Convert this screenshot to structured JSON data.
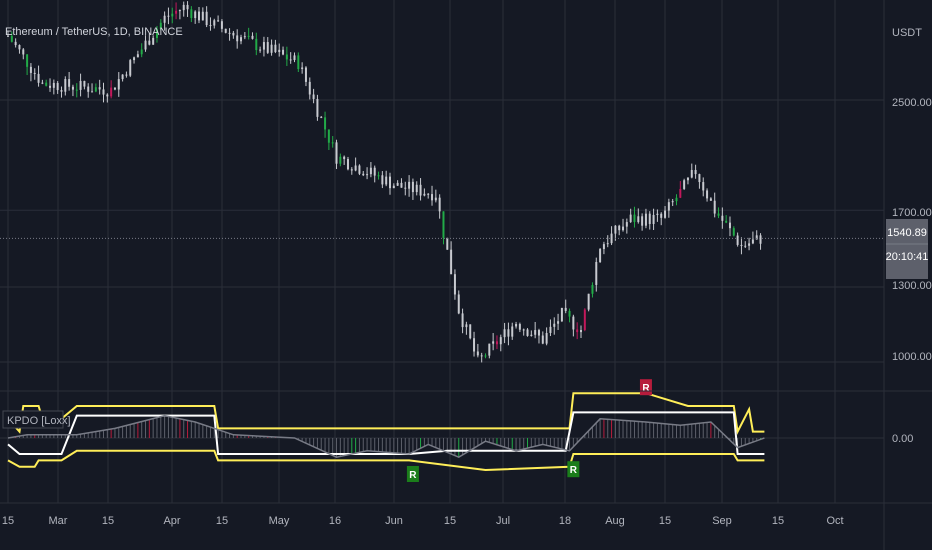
{
  "header": {
    "symbol_title": "Ethereum / TetherUS, 1D, BINANCE",
    "currency": "USDT"
  },
  "indicator": {
    "name": "KPDO [Loxx]",
    "zero_label": "0.00",
    "signal_letter": "R"
  },
  "price_badge": {
    "price": "1540.89",
    "countdown": "20:10:41"
  },
  "colors": {
    "background": "#151924",
    "grid": "#2a2e39",
    "candle_neutral": "#c8cad0",
    "candle_up": "#22ab48",
    "candle_down": "#c2185b",
    "bb_band": "#ffee58",
    "kdpo_line": "#787b86",
    "signal_line": "#ffffff",
    "green_signal": "#1b7d1b",
    "red_signal": "#b71c3c",
    "badge_bg": "#5d606b"
  },
  "chart_data": [
    {
      "type": "candlestick",
      "title": "Ethereum / TetherUS, 1D, BINANCE",
      "ylabel": "USDT",
      "y_scale": "log",
      "y_ticks": [
        "2500.00",
        "1700.00",
        "1300.00",
        "1000.00"
      ],
      "x_ticks": [
        "15",
        "Mar",
        "15",
        "Apr",
        "15",
        "May",
        "16",
        "Jun",
        "15",
        "Jul",
        "18",
        "Aug",
        "15",
        "Sep",
        "15",
        "Oct"
      ],
      "last_price": 1540.89,
      "close_path": [
        {
          "date": "2022-02-15",
          "close": 3130
        },
        {
          "date": "2022-02-24",
          "close": 2650
        },
        {
          "date": "2022-03-14",
          "close": 2590
        },
        {
          "date": "2022-03-28",
          "close": 3330
        },
        {
          "date": "2022-04-02",
          "close": 3460
        },
        {
          "date": "2022-04-10",
          "close": 3250
        },
        {
          "date": "2022-04-20",
          "close": 3050
        },
        {
          "date": "2022-05-02",
          "close": 2850
        },
        {
          "date": "2022-05-12",
          "close": 2050
        },
        {
          "date": "2022-05-28",
          "close": 1850
        },
        {
          "date": "2022-06-07",
          "close": 1800
        },
        {
          "date": "2022-06-13",
          "close": 1200
        },
        {
          "date": "2022-06-18",
          "close": 1000
        },
        {
          "date": "2022-06-28",
          "close": 1150
        },
        {
          "date": "2022-07-05",
          "close": 1080
        },
        {
          "date": "2022-07-10",
          "close": 1180
        },
        {
          "date": "2022-07-15",
          "close": 1120
        },
        {
          "date": "2022-07-20",
          "close": 1500
        },
        {
          "date": "2022-07-28",
          "close": 1650
        },
        {
          "date": "2022-08-05",
          "close": 1650
        },
        {
          "date": "2022-08-14",
          "close": 1950
        },
        {
          "date": "2022-08-19",
          "close": 1700
        },
        {
          "date": "2022-08-26",
          "close": 1500
        },
        {
          "date": "2022-08-31",
          "close": 1540
        }
      ]
    },
    {
      "type": "line",
      "title": "KPDO [Loxx]",
      "y_ticks": [
        "0.00"
      ],
      "series": [
        {
          "role": "upper band",
          "points": [
            [
              "2022-02-15",
              0.6
            ],
            [
              "2022-02-18",
              0.2
            ],
            [
              "2022-02-19",
              1.0
            ],
            [
              "2022-02-23",
              1.0
            ],
            [
              "2022-02-24",
              0.6
            ],
            [
              "2022-03-01",
              0.6
            ],
            [
              "2022-03-05",
              1.0
            ],
            [
              "2022-04-10",
              1.0
            ],
            [
              "2022-04-11",
              0.3
            ],
            [
              "2022-07-12",
              0.3
            ],
            [
              "2022-07-13",
              1.4
            ],
            [
              "2022-08-01",
              1.4
            ],
            [
              "2022-08-12",
              1.0
            ],
            [
              "2022-08-24",
              1.0
            ],
            [
              "2022-08-25",
              0.2
            ],
            [
              "2022-08-28",
              0.9
            ],
            [
              "2022-08-29",
              0.2
            ],
            [
              "2022-09-01",
              0.2
            ]
          ]
        },
        {
          "role": "lower band",
          "points": [
            [
              "2022-02-15",
              -0.7
            ],
            [
              "2022-02-18",
              -0.9
            ],
            [
              "2022-02-22",
              -0.9
            ],
            [
              "2022-02-23",
              -0.7
            ],
            [
              "2022-03-01",
              -0.7
            ],
            [
              "2022-03-05",
              -0.4
            ],
            [
              "2022-04-10",
              -0.4
            ],
            [
              "2022-04-11",
              -0.7
            ],
            [
              "2022-05-31",
              -0.7
            ],
            [
              "2022-06-20",
              -1.0
            ],
            [
              "2022-07-12",
              -0.9
            ],
            [
              "2022-07-13",
              -0.5
            ],
            [
              "2022-08-24",
              -0.5
            ],
            [
              "2022-08-25",
              -0.7
            ],
            [
              "2022-09-01",
              -0.7
            ]
          ]
        },
        {
          "role": "signal",
          "points": [
            [
              "2022-02-15",
              -0.2
            ],
            [
              "2022-02-18",
              -0.5
            ],
            [
              "2022-02-23",
              -0.5
            ],
            [
              "2022-03-01",
              -0.5
            ],
            [
              "2022-03-05",
              0.7
            ],
            [
              "2022-04-10",
              0.7
            ],
            [
              "2022-04-11",
              -0.5
            ],
            [
              "2022-05-31",
              -0.5
            ],
            [
              "2022-06-10",
              -0.4
            ],
            [
              "2022-07-11",
              -0.4
            ],
            [
              "2022-07-13",
              0.8
            ],
            [
              "2022-08-24",
              0.8
            ],
            [
              "2022-08-25",
              -0.5
            ],
            [
              "2022-09-01",
              -0.5
            ]
          ]
        },
        {
          "role": "kdpo",
          "points": [
            [
              "2022-02-15",
              0.0
            ],
            [
              "2022-02-20",
              0.1
            ],
            [
              "2022-03-05",
              0.1
            ],
            [
              "2022-03-15",
              0.3
            ],
            [
              "2022-03-28",
              0.7
            ],
            [
              "2022-04-05",
              0.5
            ],
            [
              "2022-04-15",
              0.1
            ],
            [
              "2022-05-01",
              0.0
            ],
            [
              "2022-05-12",
              -0.6
            ],
            [
              "2022-05-20",
              -0.4
            ],
            [
              "2022-05-31",
              -0.5
            ],
            [
              "2022-06-05",
              -0.2
            ],
            [
              "2022-06-13",
              -0.6
            ],
            [
              "2022-06-20",
              -0.1
            ],
            [
              "2022-06-28",
              -0.4
            ],
            [
              "2022-07-05",
              -0.2
            ],
            [
              "2022-07-12",
              -0.4
            ],
            [
              "2022-07-20",
              0.6
            ],
            [
              "2022-08-01",
              0.5
            ],
            [
              "2022-08-10",
              0.4
            ],
            [
              "2022-08-18",
              0.5
            ],
            [
              "2022-08-25",
              -0.3
            ],
            [
              "2022-09-01",
              0.0
            ]
          ]
        }
      ]
    }
  ]
}
